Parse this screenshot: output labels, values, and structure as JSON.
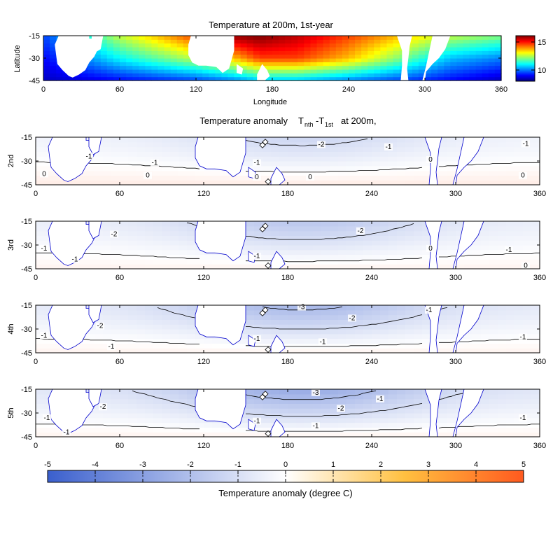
{
  "chart_data": [
    {
      "type": "heatmap",
      "title": "Temperature at 200m, 1st-year",
      "xlabel": "Longitude",
      "ylabel": "Latitude",
      "xlim": [
        0,
        360
      ],
      "ylim": [
        -45,
        -15
      ],
      "xticks": [
        "0",
        "60",
        "120",
        "180",
        "240",
        "300",
        "360"
      ],
      "yticks": [
        "-15",
        "-30",
        "-45"
      ],
      "colorbar": {
        "ticks": [
          "15",
          "10"
        ],
        "range": [
          8,
          16
        ],
        "colormap": "jet"
      },
      "field_samples": {
        "lon": [
          0,
          60,
          120,
          150,
          170,
          200,
          240,
          280,
          320,
          360
        ],
        "lat_-15": [
          9.5,
          12.5,
          14.5,
          15.8,
          16.0,
          15.5,
          14.5,
          13.5,
          12.5,
          12.0
        ],
        "lat_-30": [
          9.0,
          11.0,
          12.5,
          13.5,
          14.5,
          14.5,
          13.5,
          12.0,
          10.5,
          10.0
        ],
        "lat_-45": [
          8.5,
          9.0,
          9.5,
          10.0,
          10.5,
          10.5,
          10.0,
          9.5,
          9.0,
          8.5
        ]
      }
    },
    {
      "type": "heatmap",
      "title_prefix": "Temperature anomaly",
      "title_T1": "T",
      "title_sub1": "nth",
      "title_minus": "-T",
      "title_sub2": "1st",
      "title_suffix": "at 200m,",
      "panels": [
        {
          "ylabel": "2nd",
          "contours": [
            {
              "level": "-2",
              "label_lon": 204,
              "label_lat": -20.5
            },
            {
              "level": "-1",
              "label_lon": 38,
              "label_lat": -28
            },
            {
              "level": "-1",
              "label_lon": 85,
              "label_lat": -32
            },
            {
              "level": "-1",
              "label_lon": 158,
              "label_lat": -32
            },
            {
              "level": "-1",
              "label_lon": 252,
              "label_lat": -22
            },
            {
              "level": "-1",
              "label_lon": 350,
              "label_lat": -20
            },
            {
              "level": "0",
              "label_lon": 6,
              "label_lat": -39
            },
            {
              "level": "0",
              "label_lon": 80,
              "label_lat": -40
            },
            {
              "level": "0",
              "label_lon": 158,
              "label_lat": -41
            },
            {
              "level": "0",
              "label_lon": 196,
              "label_lat": -41
            },
            {
              "level": "0",
              "label_lon": 282,
              "label_lat": -30
            },
            {
              "level": "0",
              "label_lon": 348,
              "label_lat": -40
            }
          ]
        },
        {
          "ylabel": "3rd",
          "contours": [
            {
              "level": "-2",
              "label_lon": 56,
              "label_lat": -24
            },
            {
              "level": "-2",
              "label_lon": 232,
              "label_lat": -22
            },
            {
              "level": "-1",
              "label_lon": 6,
              "label_lat": -33
            },
            {
              "level": "-1",
              "label_lon": 28,
              "label_lat": -40
            },
            {
              "level": "-1",
              "label_lon": 158,
              "label_lat": -38
            },
            {
              "level": "-1",
              "label_lon": 338,
              "label_lat": -34
            },
            {
              "level": "0",
              "label_lon": 282,
              "label_lat": -33
            },
            {
              "level": "0",
              "label_lon": 350,
              "label_lat": -44
            }
          ]
        },
        {
          "ylabel": "4th",
          "contours": [
            {
              "level": "-3",
              "label_lon": 190,
              "label_lat": -17
            },
            {
              "level": "-2",
              "label_lon": 46,
              "label_lat": -29
            },
            {
              "level": "-2",
              "label_lon": 226,
              "label_lat": -24
            },
            {
              "level": "-1",
              "label_lon": 6,
              "label_lat": -35
            },
            {
              "level": "-1",
              "label_lon": 54,
              "label_lat": -42
            },
            {
              "level": "-1",
              "label_lon": 158,
              "label_lat": -37
            },
            {
              "level": "-1",
              "label_lon": 205,
              "label_lat": -39
            },
            {
              "level": "-1",
              "label_lon": 281,
              "label_lat": -19
            },
            {
              "level": "-1",
              "label_lon": 348,
              "label_lat": -36
            }
          ]
        },
        {
          "ylabel": "5th",
          "contours": [
            {
              "level": "-3",
              "label_lon": 200,
              "label_lat": -18
            },
            {
              "level": "-2",
              "label_lon": 48,
              "label_lat": -27
            },
            {
              "level": "-2",
              "label_lon": 218,
              "label_lat": -28
            },
            {
              "level": "-1",
              "label_lon": 8,
              "label_lat": -34
            },
            {
              "level": "-1",
              "label_lon": 22,
              "label_lat": -43
            },
            {
              "level": "-1",
              "label_lon": 158,
              "label_lat": -36
            },
            {
              "level": "-1",
              "label_lon": 200,
              "label_lat": -39
            },
            {
              "level": "-1",
              "label_lon": 246,
              "label_lat": -22
            },
            {
              "level": "-1",
              "label_lon": 348,
              "label_lat": -34
            }
          ]
        }
      ],
      "xlim": [
        0,
        360
      ],
      "ylim": [
        -45,
        -15
      ],
      "xticks": [
        "0",
        "60",
        "120",
        "180",
        "240",
        "300",
        "360"
      ],
      "yticks": [
        "-15",
        "-30",
        "-45"
      ],
      "colorbar": {
        "label": "Temperature anomaly (degree C)",
        "ticks": [
          "-5",
          "-4",
          "-3",
          "-2",
          "-1",
          "0",
          "1",
          "2",
          "3",
          "4",
          "5"
        ],
        "range": [
          -5,
          5
        ],
        "negative_color": "#3a5fcd",
        "positive_color": "#ff5a1f"
      }
    }
  ],
  "colors": {
    "land": "#ffffff",
    "coastline": "#0000cc",
    "contour": "#000000",
    "marker": "#000000"
  }
}
